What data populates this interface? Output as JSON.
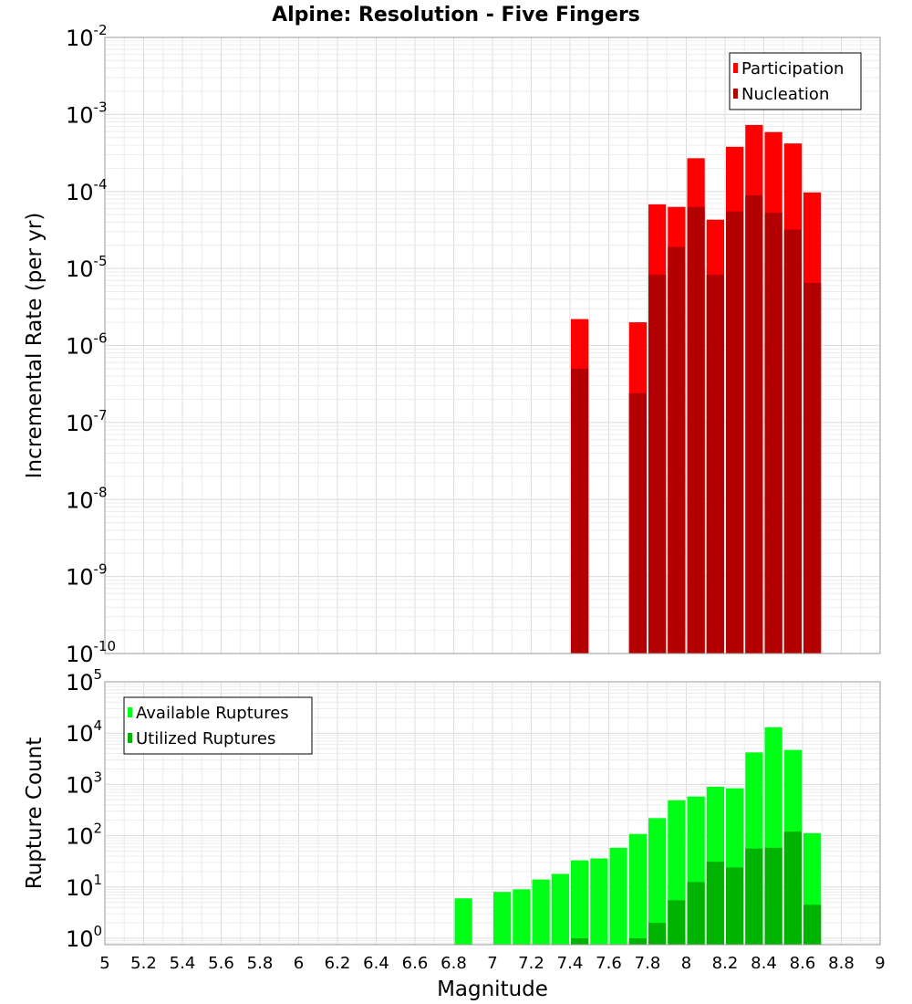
{
  "chart_data": {
    "title": "Alpine: Resolution - Five Fingers",
    "xlabel": "Magnitude",
    "x_ticks": [
      "5",
      "5.2",
      "5.4",
      "5.6",
      "5.8",
      "6",
      "6.2",
      "6.4",
      "6.6",
      "6.8",
      "7",
      "7.2",
      "7.4",
      "7.6",
      "7.8",
      "8",
      "8.2",
      "8.4",
      "8.6",
      "8.8",
      "9"
    ],
    "xlim": [
      5,
      9
    ],
    "bin_width": 0.1,
    "panels": [
      {
        "type": "bar",
        "scale": "log",
        "ylabel": "Incremental Rate (per yr)",
        "ylim": [
          1e-10,
          0.01
        ],
        "y_tick_exponents": [
          "-10",
          "-9",
          "-8",
          "-7",
          "-6",
          "-5",
          "-4",
          "-3",
          "-2"
        ],
        "grid": true,
        "legend_position": "top-right",
        "series": [
          {
            "name": "Participation",
            "color": "#ff0000",
            "x": [
              7.45,
              7.75,
              7.85,
              7.95,
              8.05,
              8.15,
              8.25,
              8.35,
              8.45,
              8.55,
              8.65
            ],
            "values": [
              2.2e-06,
              2e-06,
              6.8e-05,
              6.3e-05,
              0.00027,
              4.3e-05,
              0.00038,
              0.00073,
              0.00059,
              0.00042,
              9.7e-05
            ]
          },
          {
            "name": "Nucleation",
            "color": "#b30000",
            "x": [
              7.45,
              7.75,
              7.85,
              7.95,
              8.05,
              8.15,
              8.25,
              8.35,
              8.45,
              8.55,
              8.65
            ],
            "values": [
              5e-07,
              2.4e-07,
              8.3e-06,
              1.9e-05,
              6.3e-05,
              8.3e-06,
              5.5e-05,
              8.9e-05,
              5.3e-05,
              3.2e-05,
              6.5e-06
            ]
          }
        ]
      },
      {
        "type": "bar",
        "scale": "log",
        "ylabel": "Rupture Count",
        "ylim": [
          0.75,
          100000.0
        ],
        "y_tick_exponents": [
          "0",
          "1",
          "2",
          "3",
          "4",
          "5"
        ],
        "grid": true,
        "legend_position": "top-left",
        "series": [
          {
            "name": "Available Ruptures",
            "color": "#00ff16",
            "x": [
              6.85,
              7.05,
              7.15,
              7.25,
              7.35,
              7.45,
              7.55,
              7.65,
              7.75,
              7.85,
              7.95,
              8.05,
              8.15,
              8.25,
              8.35,
              8.45,
              8.55,
              8.65
            ],
            "values": [
              6,
              8,
              9,
              14,
              18,
              33,
              36,
              58,
              108,
              220,
              490,
              580,
              900,
              840,
              4200,
              13000,
              4700,
              112
            ]
          },
          {
            "name": "Utilized Ruptures",
            "color": "#00b300",
            "x": [
              7.45,
              7.75,
              7.85,
              7.95,
              8.05,
              8.15,
              8.25,
              8.35,
              8.45,
              8.55,
              8.65
            ],
            "values": [
              1,
              1,
              2,
              5.5,
              12.5,
              31,
              24,
              56,
              58,
              120,
              4.5
            ]
          }
        ]
      }
    ]
  }
}
